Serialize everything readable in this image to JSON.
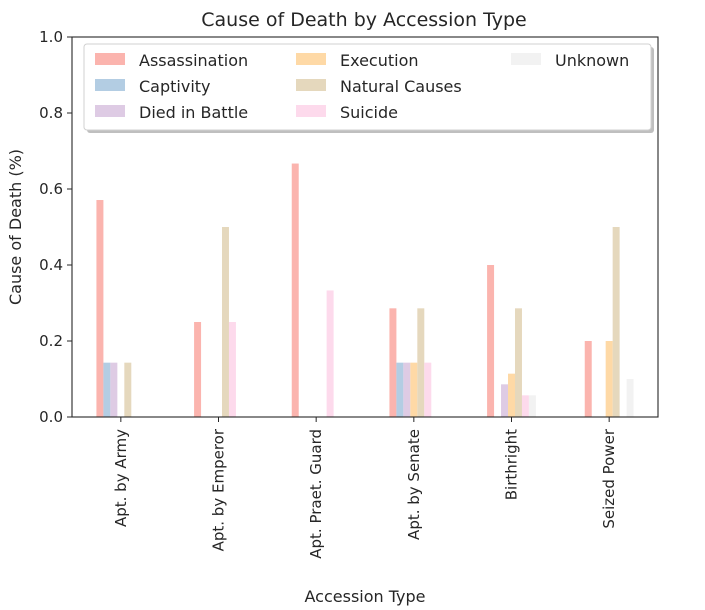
{
  "chart_data": {
    "type": "bar",
    "title": "Cause of Death by Accession Type",
    "xlabel": "Accession Type",
    "ylabel": "Cause of Death (%)",
    "ylim": [
      0,
      1.0
    ],
    "yticks": [
      "0.0",
      "0.2",
      "0.4",
      "0.6",
      "0.8",
      "1.0"
    ],
    "legend_position": "top",
    "categories": [
      "Apt. by Army",
      "Apt. by Emperor",
      "Apt. Praet. Guard",
      "Apt. by Senate",
      "Birthright",
      "Seized Power"
    ],
    "series": [
      {
        "name": "Assassination",
        "color": "#fbb4ae",
        "values": [
          0.571,
          0.25,
          0.667,
          0.286,
          0.4,
          0.2
        ]
      },
      {
        "name": "Captivity",
        "color": "#b3cde3",
        "values": [
          0.143,
          0,
          0,
          0.143,
          0,
          0
        ]
      },
      {
        "name": "Died in Battle",
        "color": "#decbe4",
        "values": [
          0.143,
          0,
          0,
          0.143,
          0.086,
          0
        ]
      },
      {
        "name": "Execution",
        "color": "#fed9a6",
        "values": [
          0,
          0,
          0,
          0.143,
          0.114,
          0.2
        ]
      },
      {
        "name": "Natural Causes",
        "color": "#e5d8bd",
        "values": [
          0.143,
          0.5,
          0,
          0.286,
          0.286,
          0.5
        ]
      },
      {
        "name": "Suicide",
        "color": "#fddaec",
        "values": [
          0,
          0.25,
          0.333,
          0.143,
          0.057,
          0
        ]
      },
      {
        "name": "Unknown",
        "color": "#f2f2f2",
        "values": [
          0,
          0,
          0,
          0,
          0.057,
          0.1
        ]
      }
    ]
  }
}
